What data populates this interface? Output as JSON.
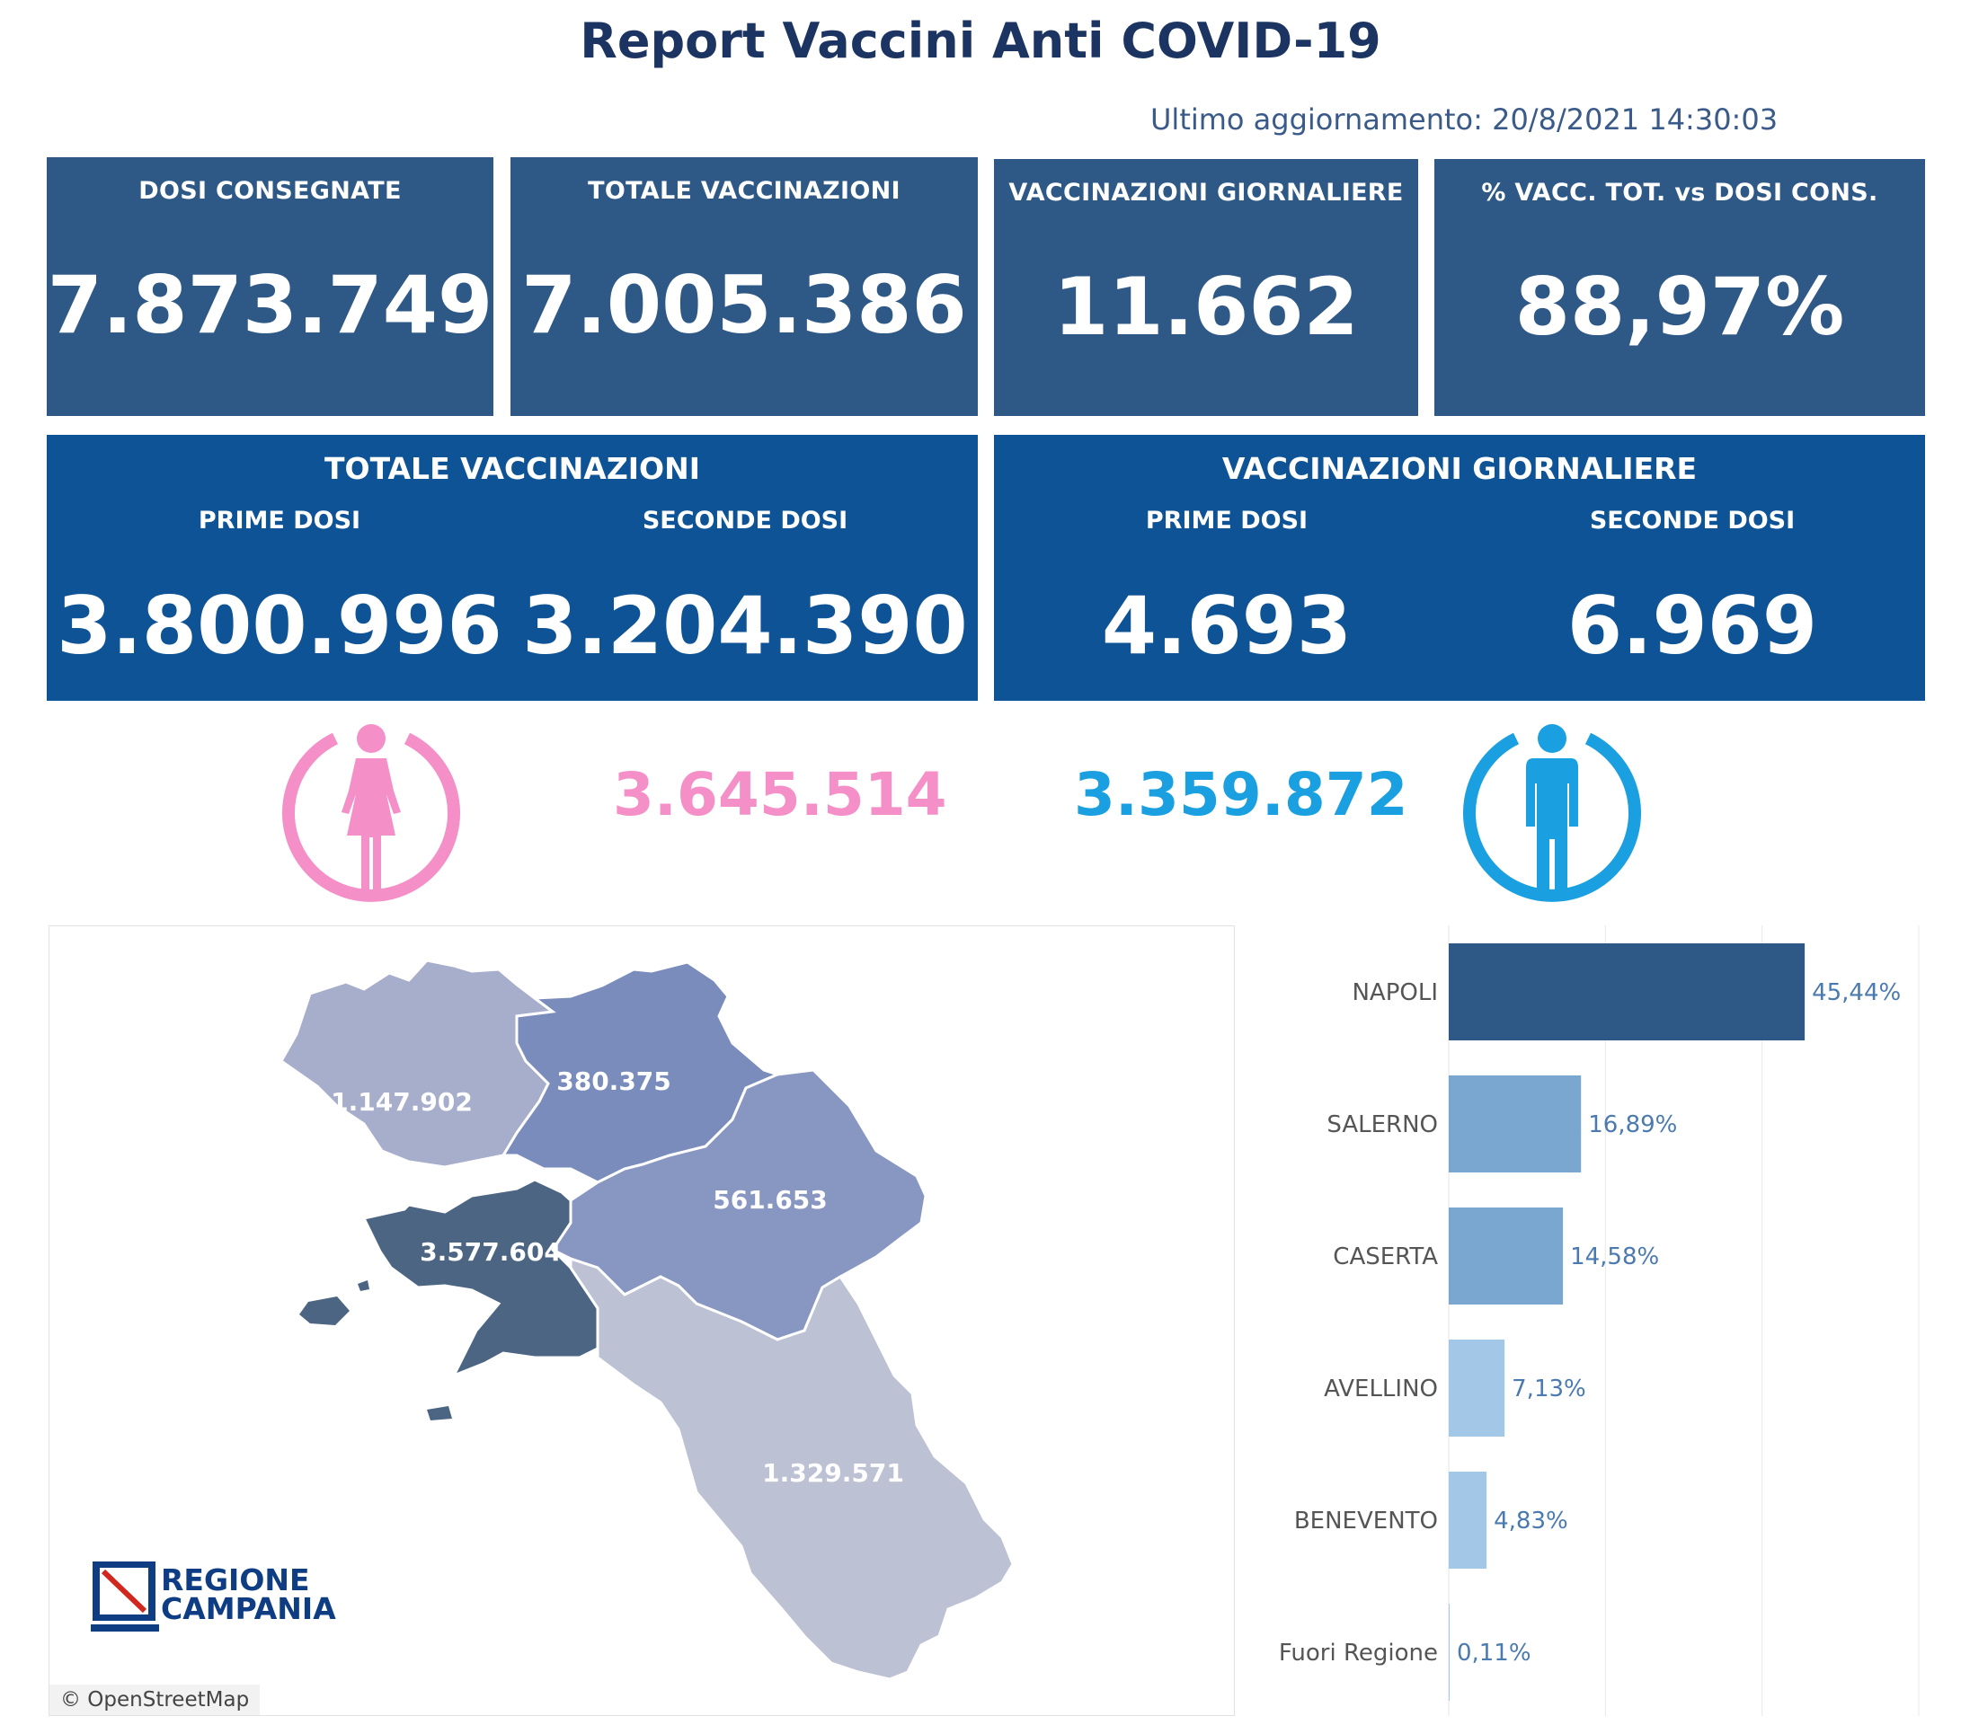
{
  "header": {
    "title": "Report Vaccini Anti COVID-19",
    "last_update": "Ultimo aggiornamento: 20/8/2021  14:30:03"
  },
  "kpis": [
    {
      "label": "DOSI  CONSEGNATE",
      "value": "7.873.749"
    },
    {
      "label": "TOTALE VACCINAZIONI",
      "value": "7.005.386"
    },
    {
      "label": "VACCINAZIONI GIORNALIERE",
      "value": "11.662"
    },
    {
      "label": "% VACC. TOT. vs DOSI CONS.",
      "value": "88,97%"
    }
  ],
  "totale_vaccinazioni": {
    "title": "TOTALE VACCINAZIONI",
    "prime_label": "PRIME DOSI",
    "prime_value": "3.800.996",
    "seconde_label": "SECONDE DOSI",
    "seconde_value": "3.204.390"
  },
  "vaccinazioni_giornaliere": {
    "title": "VACCINAZIONI GIORNALIERE",
    "prime_label": "PRIME DOSI",
    "prime_value": "4.693",
    "seconde_label": "SECONDE DOSI",
    "seconde_value": "6.969"
  },
  "gender": {
    "female_value": "3.645.514",
    "female_color": "#f48fc8",
    "male_value": "3.359.872",
    "male_color": "#1aa0e0",
    "female_icon": "female-icon",
    "male_icon": "male-icon"
  },
  "map": {
    "regions": [
      {
        "name": "Caserta",
        "label": "1.147.902",
        "color": "#a6aecb"
      },
      {
        "name": "Benevento",
        "label": "380.375",
        "color": "#7a8cbb"
      },
      {
        "name": "Avellino",
        "label": "561.653",
        "color": "#8897c2"
      },
      {
        "name": "Napoli",
        "label": "3.577.604",
        "color": "#4c6583"
      },
      {
        "name": "Salerno",
        "label": "1.329.571",
        "color": "#bcc1d4"
      }
    ],
    "attribution": "© OpenStreetMap",
    "logo_line1": "REGIONE",
    "logo_line2": "CAMPANIA"
  },
  "chart_data": {
    "type": "bar",
    "orientation": "horizontal",
    "categories": [
      "NAPOLI",
      "SALERNO",
      "CASERTA",
      "AVELLINO",
      "BENEVENTO",
      "Fuori Regione"
    ],
    "values": [
      45.44,
      16.89,
      14.58,
      7.13,
      4.83,
      0.11
    ],
    "value_labels": [
      "45,44%",
      "16,89%",
      "14,58%",
      "7,13%",
      "4,83%",
      "0,11%"
    ],
    "colors": [
      "#2e5886",
      "#7aa7d0",
      "#7aa7d0",
      "#a3c7e6",
      "#a3c7e6",
      "#a3c7e6"
    ],
    "xlim": [
      0,
      60
    ],
    "grid": true
  }
}
